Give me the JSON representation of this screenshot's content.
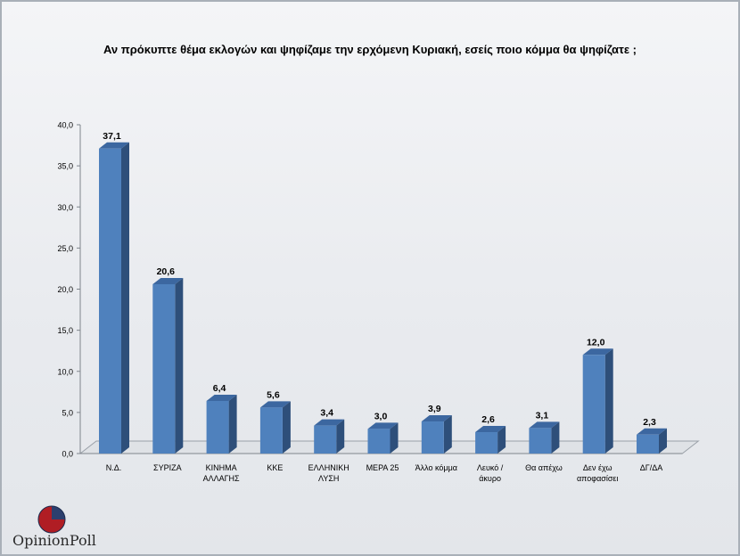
{
  "chart_data": {
    "type": "bar",
    "title": "Αν πρόκυπτε θέμα εκλογών και ψηφίζαμε την ερχόμενη Κυριακή, εσείς ποιο κόμμα θα ψηφίζατε ;",
    "categories": [
      [
        "Ν.Δ."
      ],
      [
        "ΣΥΡΙΖΑ"
      ],
      [
        "ΚΙΝΗΜΑ",
        "ΑΛΛΑΓΗΣ"
      ],
      [
        "ΚΚΕ"
      ],
      [
        "ΕΛΛΗΝΙΚΗ",
        "ΛΥΣΗ"
      ],
      [
        "ΜΕΡΑ 25"
      ],
      [
        "Άλλο κόμμα"
      ],
      [
        "Λευκό /",
        "άκυρο"
      ],
      [
        "Θα απέχω"
      ],
      [
        "Δεν έχω",
        "αποφασίσει"
      ],
      [
        "ΔΓ/ΔΑ"
      ]
    ],
    "values": [
      37.1,
      20.6,
      6.4,
      5.6,
      3.4,
      3.0,
      3.9,
      2.6,
      3.1,
      12.0,
      2.3
    ],
    "value_labels": [
      "37,1",
      "20,6",
      "6,4",
      "5,6",
      "3,4",
      "3,0",
      "3,9",
      "2,6",
      "3,1",
      "12,0",
      "2,3"
    ],
    "y_ticks": [
      "0,0",
      "5,0",
      "10,0",
      "15,0",
      "20,0",
      "25,0",
      "30,0",
      "35,0",
      "40,0"
    ],
    "ylim": [
      0,
      40
    ],
    "grid": false,
    "colors": {
      "bar_front": "#4f81bd",
      "bar_side": "#2e4f7a",
      "bar_top": "#3c67a0"
    }
  },
  "logo": {
    "text": "OpinionPoll"
  }
}
